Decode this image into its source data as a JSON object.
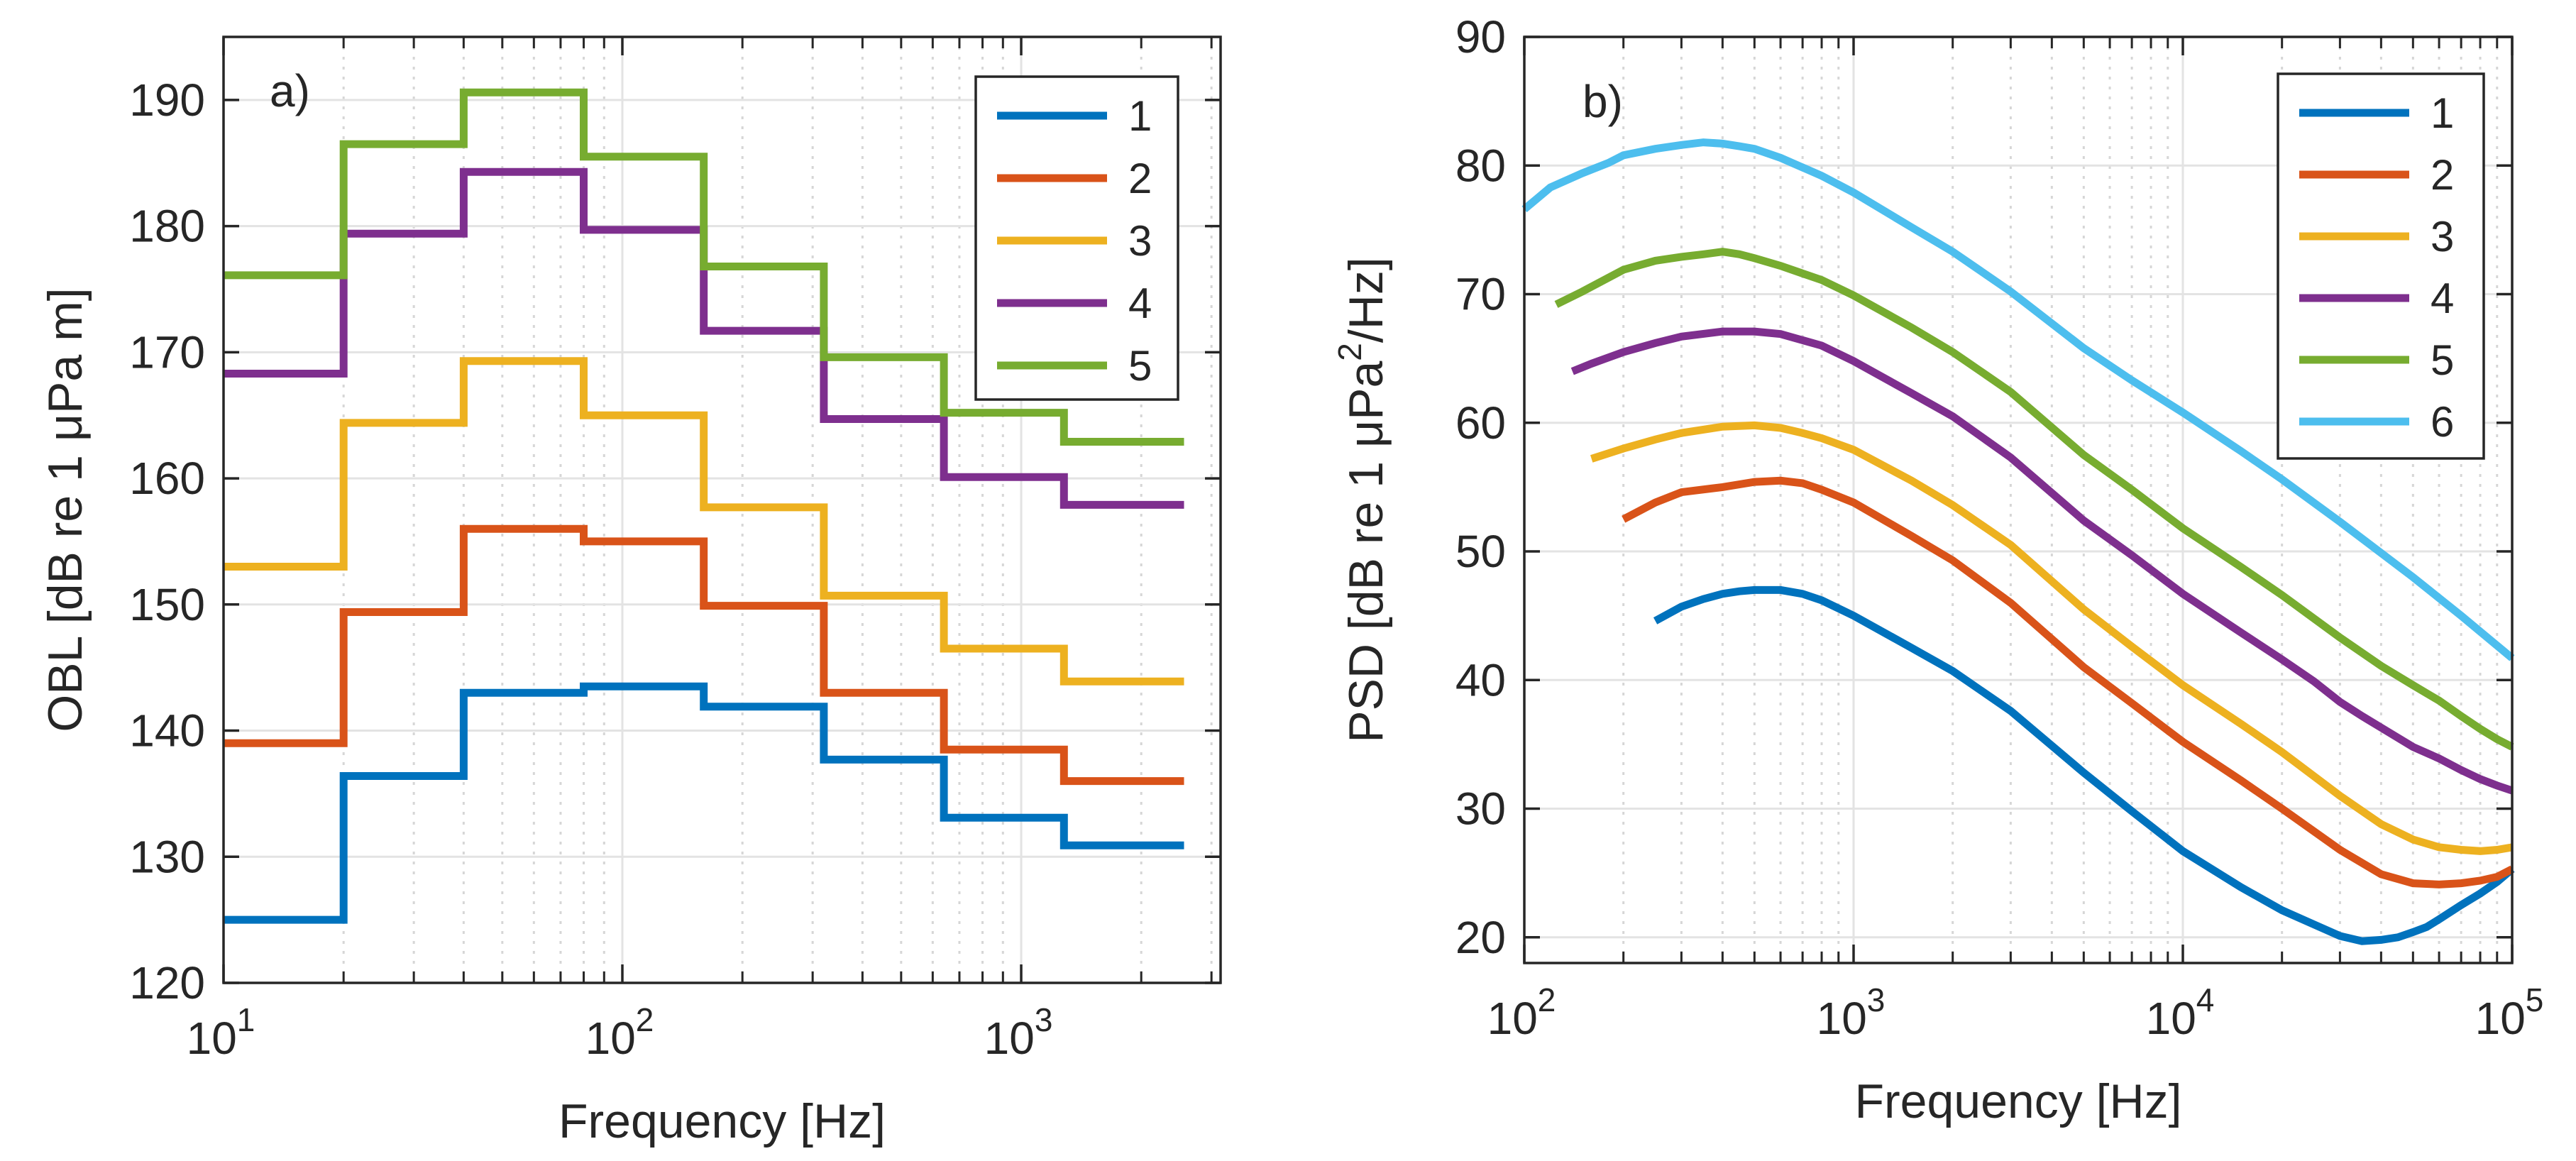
{
  "chart_data": [
    {
      "type": "line",
      "style": "step",
      "panel_label": "a)",
      "xlabel": "Frequency [Hz]",
      "ylabel": "OBL [dB re 1 μPa m]",
      "xscale": "log",
      "xlim": [
        10,
        3162
      ],
      "ylim": [
        120,
        195
      ],
      "x_ticks": [
        10,
        100,
        1000
      ],
      "x_tick_bases": [
        "10",
        "10",
        "10"
      ],
      "x_tick_exps": [
        "1",
        "2",
        "3"
      ],
      "y_ticks": [
        "120",
        "130",
        "140",
        "150",
        "160",
        "170",
        "180",
        "190"
      ],
      "grid": true,
      "legend_position": "top-right",
      "band_edges": [
        10,
        20,
        40,
        80,
        160,
        320,
        640,
        1280,
        2560
      ],
      "series": [
        {
          "name": "1",
          "color": "#0072BD",
          "values": [
            125,
            136.4,
            143,
            143.5,
            141.9,
            137.7,
            133.1,
            130.9
          ]
        },
        {
          "name": "2",
          "color": "#D95319",
          "values": [
            139,
            149.4,
            156,
            155,
            149.9,
            143,
            138.5,
            136
          ]
        },
        {
          "name": "3",
          "color": "#EDB120",
          "values": [
            153,
            164.4,
            169.3,
            165,
            157.7,
            150.7,
            146.5,
            143.9
          ]
        },
        {
          "name": "4",
          "color": "#7E2F8E",
          "values": [
            168.3,
            179.4,
            184.3,
            179.7,
            171.7,
            164.7,
            160.1,
            157.9
          ]
        },
        {
          "name": "5",
          "color": "#77AC30",
          "values": [
            176.1,
            186.5,
            190.6,
            185.5,
            176.8,
            169.6,
            165.2,
            162.9
          ]
        }
      ]
    },
    {
      "type": "line",
      "panel_label": "b)",
      "xlabel": "Frequency [Hz]",
      "ylabel": "PSD [dB re 1 μPa²/Hz]",
      "ylabel_parts": [
        "PSD [dB re 1 μPa",
        "2",
        "/Hz]"
      ],
      "xscale": "log",
      "xlim": [
        100,
        100000
      ],
      "ylim": [
        18,
        90
      ],
      "x_ticks": [
        100,
        1000,
        10000,
        100000
      ],
      "x_tick_bases": [
        "10",
        "10",
        "10",
        "10"
      ],
      "x_tick_exps": [
        "2",
        "3",
        "4",
        "5"
      ],
      "y_ticks": [
        "20",
        "30",
        "40",
        "50",
        "60",
        "70",
        "80",
        "90"
      ],
      "grid": true,
      "legend_position": "top-right",
      "series": [
        {
          "name": "1",
          "color": "#0072BD",
          "x": [
            250,
            300,
            350,
            400,
            450,
            500,
            600,
            700,
            800,
            1000,
            1500,
            2000,
            3000,
            5000,
            7000,
            10000,
            15000,
            20000,
            25000,
            30000,
            35000,
            40000,
            45000,
            50000,
            55000,
            60000,
            70000,
            80000,
            90000,
            100000
          ],
          "values": [
            44.6,
            45.7,
            46.3,
            46.7,
            46.9,
            47.0,
            47.0,
            46.7,
            46.2,
            45.0,
            42.5,
            40.7,
            37.6,
            32.8,
            29.8,
            26.7,
            23.9,
            22.1,
            21.0,
            20.1,
            19.7,
            19.8,
            20.0,
            20.4,
            20.8,
            21.4,
            22.5,
            23.4,
            24.3,
            25.3
          ]
        },
        {
          "name": "2",
          "color": "#D95319",
          "x": [
            200,
            250,
            300,
            400,
            500,
            600,
            700,
            800,
            1000,
            1500,
            2000,
            3000,
            5000,
            7000,
            10000,
            15000,
            20000,
            30000,
            40000,
            50000,
            60000,
            70000,
            80000,
            90000,
            100000
          ],
          "values": [
            52.5,
            53.8,
            54.6,
            55.0,
            55.4,
            55.5,
            55.3,
            54.8,
            53.8,
            51.2,
            49.3,
            46.0,
            41.0,
            38.2,
            35.2,
            32.2,
            30.0,
            26.8,
            24.9,
            24.2,
            24.1,
            24.2,
            24.4,
            24.7,
            25.3
          ]
        },
        {
          "name": "3",
          "color": "#EDB120",
          "x": [
            160,
            200,
            250,
            300,
            400,
            500,
            600,
            700,
            800,
            1000,
            1500,
            2000,
            3000,
            5000,
            7000,
            10000,
            15000,
            20000,
            30000,
            40000,
            50000,
            60000,
            70000,
            80000,
            90000,
            100000
          ],
          "values": [
            57.2,
            58.0,
            58.7,
            59.2,
            59.7,
            59.8,
            59.6,
            59.2,
            58.8,
            57.9,
            55.5,
            53.6,
            50.5,
            45.5,
            42.6,
            39.6,
            36.6,
            34.4,
            31.0,
            28.8,
            27.6,
            27.0,
            26.8,
            26.7,
            26.8,
            27.0
          ]
        },
        {
          "name": "4",
          "color": "#7E2F8E",
          "x": [
            140,
            160,
            200,
            250,
            300,
            400,
            500,
            600,
            800,
            1000,
            1500,
            2000,
            3000,
            5000,
            7000,
            10000,
            15000,
            20000,
            25000,
            30000,
            35000,
            40000,
            50000,
            60000,
            70000,
            80000,
            90000,
            100000
          ],
          "values": [
            64.0,
            64.6,
            65.5,
            66.2,
            66.7,
            67.1,
            67.1,
            66.9,
            66.0,
            64.8,
            62.3,
            60.5,
            57.3,
            52.4,
            49.7,
            46.7,
            43.7,
            41.6,
            39.9,
            38.3,
            37.2,
            36.3,
            34.8,
            33.9,
            33.0,
            32.3,
            31.8,
            31.4
          ]
        },
        {
          "name": "5",
          "color": "#77AC30",
          "x": [
            125,
            150,
            200,
            250,
            300,
            350,
            400,
            450,
            500,
            600,
            800,
            1000,
            1500,
            2000,
            3000,
            5000,
            7000,
            10000,
            15000,
            20000,
            30000,
            40000,
            50000,
            60000,
            70000,
            80000,
            90000,
            100000
          ],
          "values": [
            69.2,
            70.2,
            71.9,
            72.6,
            72.9,
            73.1,
            73.3,
            73.1,
            72.8,
            72.2,
            71.1,
            69.9,
            67.4,
            65.5,
            62.4,
            57.5,
            54.8,
            51.8,
            48.8,
            46.6,
            43.3,
            41.1,
            39.6,
            38.4,
            37.2,
            36.2,
            35.4,
            34.8
          ]
        },
        {
          "name": "6",
          "color": "#4DBEEE",
          "x": [
            100,
            120,
            150,
            180,
            200,
            250,
            300,
            350,
            400,
            450,
            500,
            600,
            800,
            1000,
            1500,
            2000,
            3000,
            5000,
            7000,
            10000,
            15000,
            20000,
            30000,
            50000,
            70000,
            100000
          ],
          "values": [
            76.6,
            78.3,
            79.4,
            80.2,
            80.8,
            81.3,
            81.6,
            81.8,
            81.7,
            81.5,
            81.3,
            80.6,
            79.2,
            77.9,
            75.2,
            73.3,
            70.2,
            65.8,
            63.3,
            60.8,
            57.8,
            55.6,
            52.3,
            48.0,
            45.0,
            41.7
          ]
        }
      ]
    }
  ]
}
